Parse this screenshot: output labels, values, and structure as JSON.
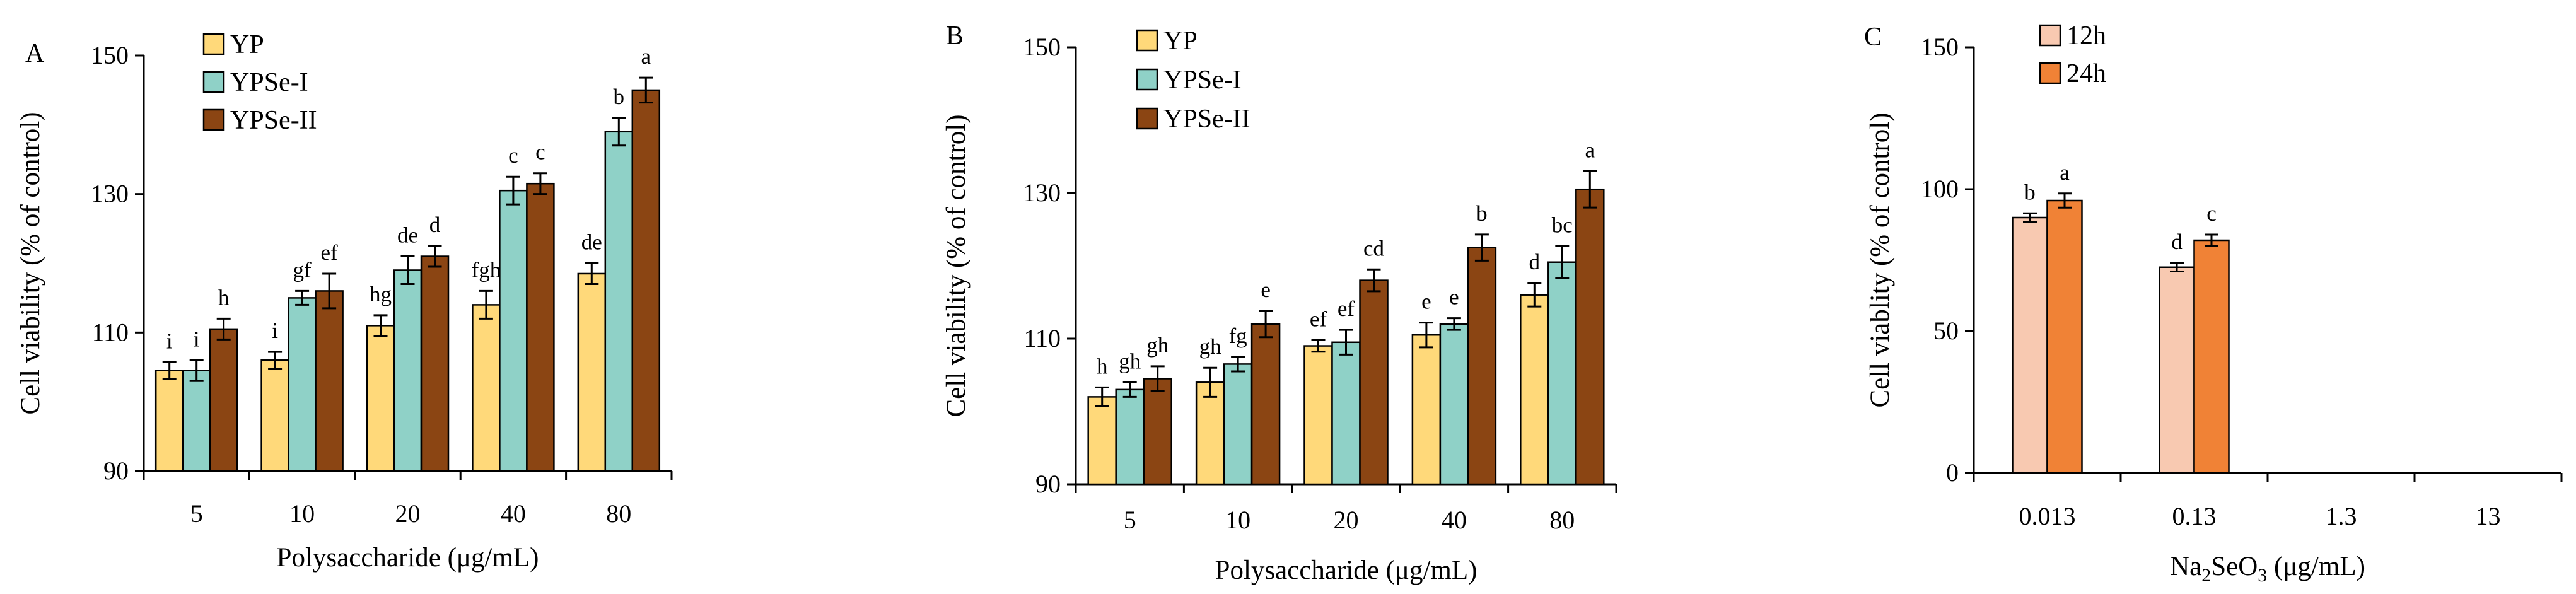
{
  "chart_data": [
    {
      "type": "bar",
      "panel": "A",
      "ylabel": "Cell viability (% of control)",
      "xlabel": "Polysaccharide (μg/mL)",
      "ylim": [
        90,
        150
      ],
      "yticks": [
        90,
        110,
        130,
        150
      ],
      "categories": [
        "5",
        "10",
        "20",
        "40",
        "80"
      ],
      "legend": "top-left",
      "series": [
        {
          "name": "YP",
          "color": "#FFD97A",
          "values": [
            104.5,
            106,
            111,
            114,
            118.5
          ],
          "errors": [
            1.2,
            1.2,
            1.5,
            2,
            1.5
          ],
          "labels": [
            "i",
            "i",
            "hg",
            "fgh",
            "de"
          ]
        },
        {
          "name": "YPSe-I",
          "color": "#8FD1C7",
          "values": [
            104.5,
            115,
            119,
            130.5,
            139
          ],
          "errors": [
            1.5,
            1,
            2,
            2,
            2
          ],
          "labels": [
            "i",
            "gf",
            "de",
            "c",
            "b"
          ]
        },
        {
          "name": "YPSe-II",
          "color": "#8B4513",
          "values": [
            110.5,
            116,
            121,
            131.5,
            145
          ],
          "errors": [
            1.5,
            2.5,
            1.5,
            1.5,
            1.8
          ],
          "labels": [
            "h",
            "ef",
            "d",
            "c",
            "a"
          ]
        }
      ]
    },
    {
      "type": "bar",
      "panel": "B",
      "ylabel": "Cell viability (% of control)",
      "xlabel": "Polysaccharide (μg/mL)",
      "ylim": [
        90,
        150
      ],
      "yticks": [
        90,
        110,
        130,
        150
      ],
      "categories": [
        "5",
        "10",
        "20",
        "40",
        "80"
      ],
      "legend": "top-left",
      "series": [
        {
          "name": "YP",
          "color": "#FFD97A",
          "values": [
            102,
            104,
            109,
            110.5,
            116
          ],
          "errors": [
            1.3,
            2,
            0.8,
            1.7,
            1.6
          ],
          "labels": [
            "h",
            "gh",
            "ef",
            "e",
            "d"
          ]
        },
        {
          "name": "YPSe-I",
          "color": "#8FD1C7",
          "values": [
            103,
            106.5,
            109.5,
            112,
            120.5
          ],
          "errors": [
            1,
            1,
            1.7,
            0.8,
            2.2
          ],
          "labels": [
            "gh",
            "fg",
            "ef",
            "e",
            "bc"
          ]
        },
        {
          "name": "YPSe-II",
          "color": "#8B4513",
          "values": [
            104.5,
            112,
            118,
            122.5,
            130.5
          ],
          "errors": [
            1.7,
            1.8,
            1.5,
            1.8,
            2.5
          ],
          "labels": [
            "gh",
            "e",
            "cd",
            "b",
            "a"
          ]
        }
      ]
    },
    {
      "type": "bar",
      "panel": "C",
      "ylabel": "Cell viablity (% of control)",
      "xlabel": "Na2SeO3 (μg/mL)",
      "ylim": [
        0,
        150
      ],
      "yticks": [
        0,
        50,
        100,
        150
      ],
      "categories": [
        "0.013",
        "0.13",
        "1.3",
        "13"
      ],
      "legend": "top-left",
      "series": [
        {
          "name": "12h",
          "color": "#F8C9B1",
          "values": [
            90,
            72.5,
            0,
            0
          ],
          "errors": [
            1.5,
            1.5,
            0,
            0
          ],
          "labels": [
            "b",
            "d",
            "",
            ""
          ]
        },
        {
          "name": "24h",
          "color": "#F08236",
          "values": [
            96,
            82,
            0,
            0
          ],
          "errors": [
            2.5,
            2,
            0,
            0
          ],
          "labels": [
            "a",
            "c",
            "",
            ""
          ]
        }
      ]
    }
  ],
  "panel_labels": [
    "A",
    "B",
    "C"
  ],
  "xlabel_C_parts": {
    "prefix": "Na",
    "sub1": "2",
    "mid": "SeO",
    "sub2": "3",
    "suffix": " (μg/mL)"
  }
}
